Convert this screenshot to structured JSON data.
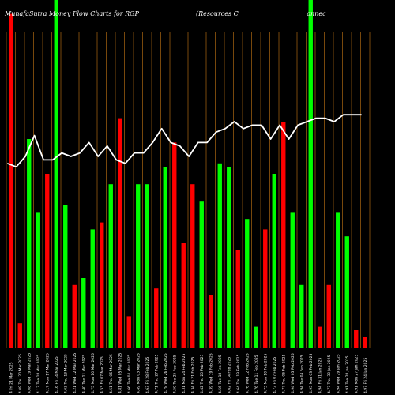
{
  "chart_data": {
    "type": "bar",
    "title_left": "MunafaSutra  Money Flow  Charts for RGP",
    "title_right": "(Resources C                                  onnec",
    "background": "#000000",
    "colors": {
      "up": "#00ff00",
      "down": "#ff0000",
      "line": "#ffffff",
      "grid": "#c87a14"
    },
    "ylim": [
      0,
      100
    ],
    "bars": [
      {
        "label": "4 Fri 21 Mar 2025",
        "value": 96,
        "color": "down"
      },
      {
        "label": "4.09 Thu 20 Mar 2025",
        "value": 7,
        "color": "down"
      },
      {
        "label": "4.08 Wed 19 Mar 2025",
        "value": 60,
        "color": "up"
      },
      {
        "label": "4.17 Tue 18 Mar 2025",
        "value": 39,
        "color": "up"
      },
      {
        "label": "4.17 Mon 17 Mar 2025",
        "value": 50,
        "color": "down"
      },
      {
        "label": "4.16 Fri 14 Mar 2025",
        "value": 100,
        "color": "up"
      },
      {
        "label": "4.03 Thu 13 Mar 2025",
        "value": 41,
        "color": "up"
      },
      {
        "label": "4.21 Wed 12 Mar 2025",
        "value": 18,
        "color": "down"
      },
      {
        "label": "4.40 Tue 11 Mar 2025",
        "value": 20,
        "color": "up"
      },
      {
        "label": "4.75 Mon 10 Mar 2025",
        "value": 34,
        "color": "up"
      },
      {
        "label": "4.53 Fri 07 Mar 2025",
        "value": 36,
        "color": "down"
      },
      {
        "label": "4.51 Thu 06 Mar 2025",
        "value": 47,
        "color": "up"
      },
      {
        "label": "4.81 Wed 05 Mar 2025",
        "value": 66,
        "color": "down"
      },
      {
        "label": "4.66 Tue 04 Mar 2025",
        "value": 9,
        "color": "down"
      },
      {
        "label": "4.49 Mon 03 Mar 2025",
        "value": 47,
        "color": "up"
      },
      {
        "label": "4.63 Fri 28 Feb 2025",
        "value": 47,
        "color": "up"
      },
      {
        "label": "4.71 Thu 27 Feb 2025",
        "value": 17,
        "color": "down"
      },
      {
        "label": "4.78 Wed 26 Feb 2025",
        "value": 52,
        "color": "up"
      },
      {
        "label": "4.50 Tue 25 Feb 2025",
        "value": 59,
        "color": "down"
      },
      {
        "label": "4.31 Mon 24 Feb 2025",
        "value": 30,
        "color": "down"
      },
      {
        "label": "4.34 Fri 21 Feb 2025",
        "value": 47,
        "color": "down"
      },
      {
        "label": "4.42 Thu 20 Feb 2025",
        "value": 42,
        "color": "up"
      },
      {
        "label": "4.39 Wed 19 Feb 2025",
        "value": 15,
        "color": "down"
      },
      {
        "label": "4.56 Tue 18 Feb 2025",
        "value": 53,
        "color": "up"
      },
      {
        "label": "4.62 Fri 14 Feb 2025",
        "value": 52,
        "color": "up"
      },
      {
        "label": "4.64 Thu 13 Feb 2025",
        "value": 28,
        "color": "down"
      },
      {
        "label": "4.76 Wed 12 Feb 2025",
        "value": 37,
        "color": "up"
      },
      {
        "label": "4.76 Tue 11 Feb 2025",
        "value": 6,
        "color": "up"
      },
      {
        "label": "4.73 Mon 10 Feb 2025",
        "value": 34,
        "color": "down"
      },
      {
        "label": "4.73 Fri 07 Feb 2025",
        "value": 50,
        "color": "up"
      },
      {
        "label": "4.77 Thu 06 Feb 2025",
        "value": 65,
        "color": "down"
      },
      {
        "label": "4.94 Wed 05 Feb 2025",
        "value": 39,
        "color": "up"
      },
      {
        "label": "4.94 Tue 04 Feb 2025",
        "value": 18,
        "color": "up"
      },
      {
        "label": "4.95 Mon 03 Feb 2025",
        "value": 100,
        "color": "up"
      },
      {
        "label": "4.94 Fri 31 Jan 2025",
        "value": 6,
        "color": "down"
      },
      {
        "label": "4.77 Thu 30 Jan 2025",
        "value": 18,
        "color": "down"
      },
      {
        "label": "4.94 Wed 29 Jan 2025",
        "value": 39,
        "color": "up"
      },
      {
        "label": "4.91 Tue 28 Jan 2025",
        "value": 32,
        "color": "up"
      },
      {
        "label": "4.91 Mon 27 Jan 2025",
        "value": 5,
        "color": "down"
      },
      {
        "label": "4.97 Fri 24 Jan 2025",
        "value": 3,
        "color": "down"
      }
    ],
    "line_values": [
      53,
      52,
      55,
      61,
      54,
      54,
      56,
      55,
      56,
      59,
      55,
      58,
      54,
      53,
      56,
      56,
      59,
      63,
      59,
      58,
      55,
      59,
      59,
      62,
      63,
      65,
      63,
      64,
      64,
      60,
      64,
      60,
      64,
      65,
      66,
      66,
      65,
      67,
      67,
      67
    ]
  }
}
